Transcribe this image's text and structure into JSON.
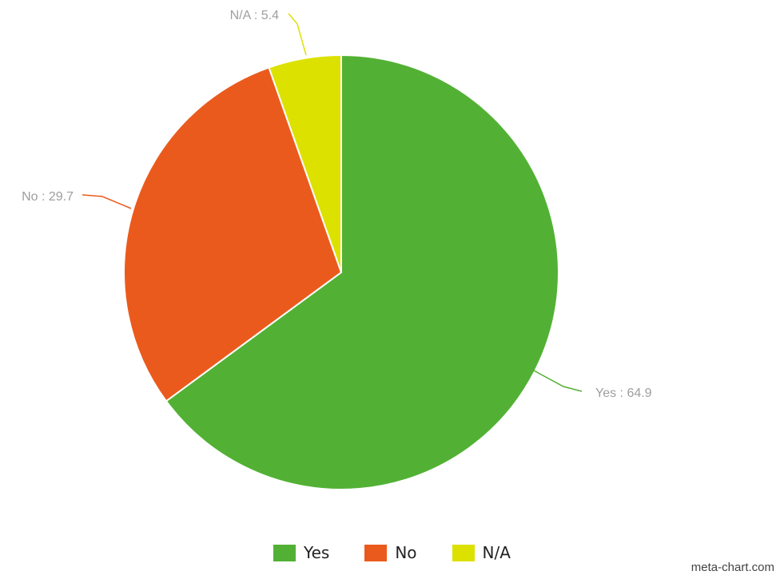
{
  "chart_data": {
    "type": "pie",
    "slices": [
      {
        "label": "Yes",
        "value": 64.9,
        "color": "#52b134",
        "data_label": "Yes : 64.9"
      },
      {
        "label": "No",
        "value": 29.7,
        "color": "#eb5a1d",
        "data_label": "No : 29.7"
      },
      {
        "label": "N/A",
        "value": 5.4,
        "color": "#dde100",
        "data_label": "N/A : 5.4"
      }
    ],
    "start": "12 o'clock",
    "direction": "clockwise",
    "legend_placement": "bottom-center"
  },
  "legend": {
    "items": [
      {
        "label": "Yes",
        "color": "#52b134"
      },
      {
        "label": "No",
        "color": "#eb5a1d"
      },
      {
        "label": "N/A",
        "color": "#dde100"
      }
    ]
  },
  "footer": {
    "credit": "meta-chart.com"
  }
}
